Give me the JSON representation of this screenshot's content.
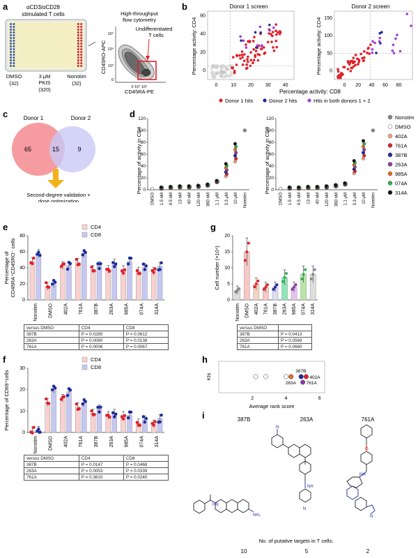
{
  "panels": {
    "a": {
      "label": "a",
      "stim_title": "αCD3/αCD28\nstimulated T cells",
      "plate_labels": [
        {
          "name": "DMSO",
          "sub": "(32)"
        },
        {
          "name": "3 μM\nPKIS",
          "sub": "(320)"
        },
        {
          "name": "Nonstim",
          "sub": "(32)"
        }
      ],
      "flow_title": "High-throughput\nflow cytometry",
      "gate_label": "Undifferentiated\nT cells",
      "xaxis": "CD45RA-PE",
      "yaxis": "CD45RO-APC",
      "ticks": [
        "10⁴",
        "10³",
        "0",
        "10⁴ 10⁵"
      ],
      "colors": {
        "plate_fill": "#f6f2c8",
        "dmso_col": "#3a5fb0",
        "nonstim_col": "#d7263d",
        "gate": "#e0202a"
      }
    },
    "b": {
      "label": "b",
      "titles": [
        "Donor 1 screen",
        "Donor 2 screen"
      ],
      "ylabel": "Percentage activity: CD4",
      "xlabel": "Percentage activity: CD8",
      "legend": [
        {
          "label": "Donor 1 hits",
          "color": "#e0202a"
        },
        {
          "label": "Donor 2 hits",
          "color": "#1c2a9c"
        },
        {
          "label": "Hits in both donors 1 + 2",
          "color": "#a040d8"
        }
      ],
      "left_xticks": [
        "0",
        "10",
        "20",
        "30",
        "40"
      ],
      "left_yticks": [
        "0",
        "20",
        "40",
        "60"
      ],
      "right_xticks": [
        "0",
        "20",
        "40",
        "60",
        "80"
      ],
      "right_yticks": [
        "0",
        "50",
        "100",
        "150"
      ]
    },
    "c": {
      "label": "c",
      "sets": [
        {
          "name": "Donor 1",
          "count": "65",
          "color": "#f48b8f"
        },
        {
          "name": "Donor 2",
          "count": "9",
          "color": "#c9c8f6"
        }
      ],
      "overlap": "15",
      "arrow_color": "#f1b21a",
      "caption": "Second-degree validation +\ndose optimization"
    },
    "d": {
      "label": "d",
      "ylabel_left": "Percentage of activity in CD4",
      "ylabel_right": "Percentage of activity in CD8",
      "yticks": [
        "0",
        "20",
        "40",
        "60",
        "80",
        "100",
        "120"
      ],
      "xticks": [
        "DMSO",
        "1.5 nM",
        "4.5 nM",
        "13 nM",
        "40 nM",
        "120 nM",
        "360 nM",
        "1.1 μM",
        "3.3 μM",
        "10 μM",
        "Nonstim"
      ],
      "legend": [
        {
          "label": "Nonstim",
          "color": "#888888"
        },
        {
          "label": "DMSO",
          "color": "#ffffff"
        },
        {
          "label": "402A",
          "color": "#f4a07a"
        },
        {
          "label": "761A",
          "color": "#e0202a"
        },
        {
          "label": "387B",
          "color": "#1c2a9c"
        },
        {
          "label": "263A",
          "color": "#8b3aa8"
        },
        {
          "label": "985A",
          "color": "#e96b1e"
        },
        {
          "label": "074A",
          "color": "#2db34a"
        },
        {
          "label": "314A",
          "color": "#111111"
        }
      ]
    },
    "e": {
      "label": "e",
      "ylabel": "Percentage of\nCD45RA⁺CD45RO⁻ cells",
      "yticks": [
        "0",
        "20",
        "40",
        "60",
        "80"
      ],
      "legend": [
        {
          "label": "CD4",
          "color": "#f8d1d0"
        },
        {
          "label": "CD8",
          "color": "#c6c8f2"
        }
      ],
      "categories": [
        "Nonstim",
        "DMSO",
        "402A",
        "761A",
        "387B",
        "263A",
        "985A",
        "074A",
        "314A"
      ],
      "cd4": [
        48,
        17,
        43,
        47,
        38,
        38,
        38,
        36,
        36
      ],
      "cd8": [
        58,
        20,
        43,
        58,
        43,
        46,
        48,
        41,
        42
      ],
      "table": {
        "header": [
          "versus DMSO",
          "CD4",
          "CD8"
        ],
        "rows": [
          [
            "387B",
            "P = 0.0285",
            "P = 0.0612"
          ],
          [
            "263A",
            "P = 0.0080",
            "P = 0.0138"
          ],
          [
            "761A",
            "P = 0.0006",
            "P = 0.0067"
          ]
        ]
      }
    },
    "f": {
      "label": "f",
      "ylabel": "Percentage of CD69⁺cells",
      "yticks": [
        "0",
        "10",
        "20",
        "30"
      ],
      "legend": [
        {
          "label": "CD4",
          "color": "#f8d1d0"
        },
        {
          "label": "CD8",
          "color": "#c6c8f2"
        }
      ],
      "categories": [
        "Nonstim",
        "DMSO",
        "402A",
        "761A",
        "387B",
        "263A",
        "985A",
        "074A",
        "314A"
      ],
      "cd4": [
        0.8,
        14,
        16,
        12,
        9,
        8,
        8,
        4.5,
        4
      ],
      "cd8": [
        1,
        20,
        19,
        14,
        11,
        9,
        8,
        6,
        6.5
      ],
      "table": {
        "header": [
          "versus DMSO",
          "CD4",
          "CD8"
        ],
        "rows": [
          [
            "387B",
            "P = 0.0147",
            "P = 0.0468"
          ],
          [
            "263A",
            "P = 0.0053",
            "P = 0.0339"
          ],
          [
            "761A",
            "P = 0.3610",
            "P = 0.0240"
          ]
        ]
      }
    },
    "g": {
      "label": "g",
      "ylabel": "Cell number (×10⁴)",
      "yticks": [
        "0",
        "5",
        "10",
        "15",
        "20"
      ],
      "categories": [
        "Nonstim",
        "DMSO",
        "402A",
        "761A",
        "387B",
        "263A",
        "985A",
        "074A",
        "314A"
      ],
      "values": [
        3,
        15,
        5,
        4,
        4,
        7,
        4,
        8,
        8
      ],
      "colors": [
        "#dddddd",
        "#f8c7c6",
        "#f4d3c2",
        "#f8c7c6",
        "#dcdcf3",
        "#8fe6b8",
        "#e3c6ef",
        "#b8e6a6",
        "#dddddd"
      ],
      "table": {
        "header": [
          "versus DMSO",
          ""
        ],
        "rows": [
          [
            "387B",
            "P = 0.0413"
          ],
          [
            "263A",
            "P = 0.0569"
          ],
          [
            "761A",
            "P = 0.0660"
          ]
        ]
      }
    },
    "h": {
      "label": "h",
      "ylabel": "KIs",
      "xlabel": "Average rank score",
      "xticks": [
        "2",
        "4",
        "6"
      ],
      "points": [
        {
          "x": 2.2,
          "label": "",
          "color": "#ffffff"
        },
        {
          "x": 2.8,
          "label": "",
          "color": "#ffffff"
        },
        {
          "x": 4.0,
          "label": "",
          "color": "#ffffff"
        },
        {
          "x": 4.3,
          "label": "263A",
          "color": "#e96b1e"
        },
        {
          "x": 4.9,
          "label": "387B",
          "color": "#1c2a9c"
        },
        {
          "x": 5.2,
          "label": "402A",
          "color": "#e0202a"
        },
        {
          "x": 5.0,
          "label": "761A",
          "color": "#8b3aa8"
        }
      ]
    },
    "i": {
      "label": "i",
      "compounds": [
        {
          "name": "387B",
          "targets": "10"
        },
        {
          "name": "263A",
          "targets": "5"
        },
        {
          "name": "761A",
          "targets": "2"
        }
      ],
      "caption": "No. of putative targets in T cells:"
    }
  }
}
